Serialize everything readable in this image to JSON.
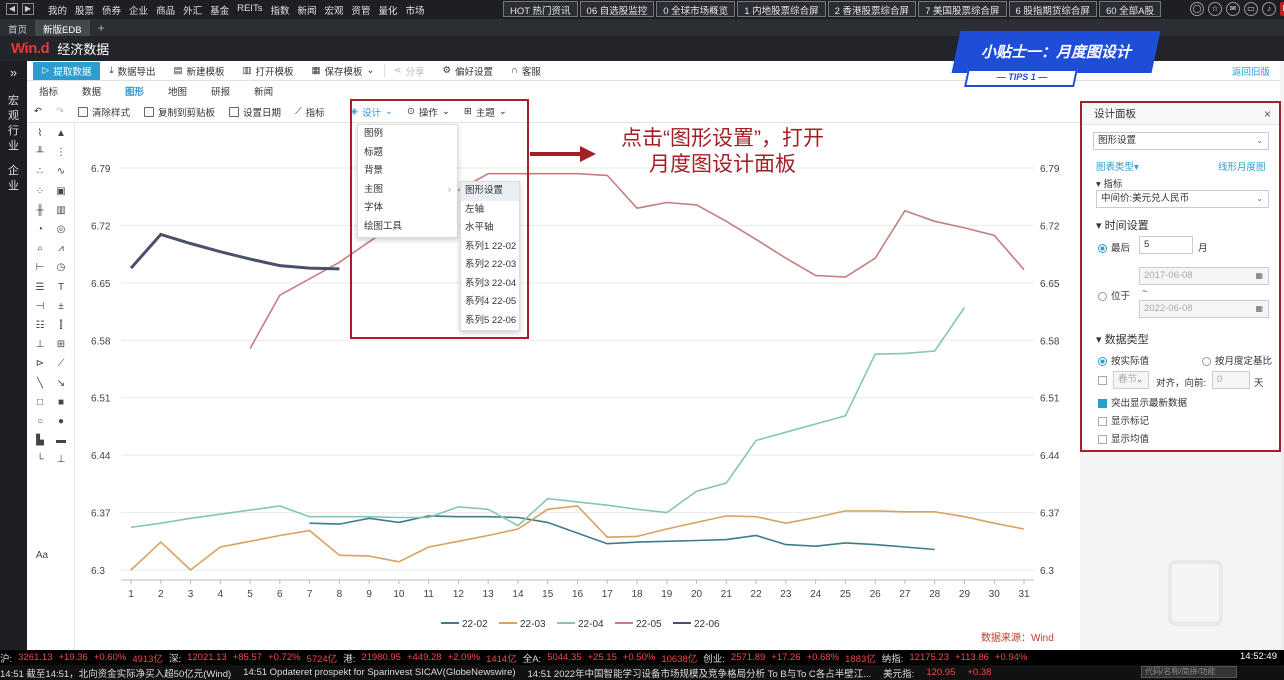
{
  "topbar": {
    "nav": [
      "我的",
      "股票",
      "债券",
      "企业",
      "商品",
      "外汇",
      "基金",
      "REITs",
      "指数",
      "新闻",
      "宏观",
      "资管",
      "量化",
      "市场"
    ],
    "quick": [
      "HOT 热门资讯",
      "06 自选股监控",
      "0 全球市场概览",
      "1 内地股票综合屏",
      "2 香港股票综合屏",
      "7 美国股票综合屏",
      "6 股指期货综合屏",
      "60 全部A股"
    ],
    "f1": "F1"
  },
  "tabs": {
    "home": "首页",
    "active": "新版EDB",
    "plus": "+"
  },
  "header": {
    "logo": "Win.d",
    "app": "经济数据"
  },
  "left_side": {
    "items": [
      "宏",
      "观",
      "行",
      "业",
      "企",
      "业"
    ],
    "expand": "»"
  },
  "toolbar1": {
    "extract": "提取数据",
    "export": "数据导出",
    "new_tpl": "新建模板",
    "open_tpl": "打开模板",
    "save_tpl": "保存模板",
    "share": "分享",
    "prefs": "偏好设置",
    "service": "客服",
    "old": "返回旧版"
  },
  "toolbar2": {
    "tabs": [
      "指标",
      "数据",
      "图形",
      "地图",
      "研报",
      "新闻"
    ],
    "active": "图形"
  },
  "toolbar3": {
    "clear": "清除样式",
    "copy": "复制到剪贴板",
    "date": "设置日期",
    "indicator": "指标",
    "design": "设计",
    "ops": "操作",
    "theme": "主题"
  },
  "menu_design": {
    "items": [
      "图例",
      "标题",
      "背景",
      "主图",
      "字体",
      "绘图工具"
    ]
  },
  "menu_main": {
    "items": [
      "图形设置",
      "左轴",
      "水平轴",
      "系列1 22-02",
      "系列2 22-03",
      "系列3 22-04",
      "系列4 22-05",
      "系列5 22-06"
    ]
  },
  "annotation": {
    "line1": "点击“图形设置”，打开",
    "line2": "月度图设计面板"
  },
  "tips": {
    "title": "小贴士一：月度图设计",
    "sub": "— TIPS 1 —"
  },
  "panel": {
    "title": "设计面板",
    "close": "×",
    "select": "图形设置",
    "chart_type": "图表类型▾",
    "chart_type_val": "线形月度图",
    "indicator_head": "指标",
    "indicator_val": "中间价:美元兑人民币",
    "time_head": "时间设置",
    "latest": "最后",
    "latest_val": "5",
    "month": "月",
    "date_from": "2017-06-08",
    "range": "位于",
    "tilde": "~",
    "date_to": "2022-06-08",
    "dtype_head": "数据类型",
    "actual": "按实际值",
    "yoy": "按月度定基比",
    "spring": "春节",
    "align": "对齐，向前:",
    "align_val": "0",
    "day": "天",
    "highlight": "突出显示最新数据",
    "marks": "显示标记",
    "avg": "显示均值"
  },
  "chart_data": {
    "type": "line",
    "x": [
      1,
      2,
      3,
      4,
      5,
      6,
      7,
      8,
      9,
      10,
      11,
      12,
      13,
      14,
      15,
      16,
      17,
      18,
      19,
      20,
      21,
      22,
      23,
      24,
      25,
      26,
      27,
      28,
      29,
      30,
      31
    ],
    "yticks": [
      6.3,
      6.37,
      6.44,
      6.51,
      6.58,
      6.65,
      6.72,
      6.79
    ],
    "ylim": [
      6.3,
      6.79
    ],
    "xlim": [
      1,
      31
    ],
    "source": "数据来源：Wind",
    "series": [
      {
        "name": "22-02",
        "color": "#3e7b8c",
        "values": [
          null,
          null,
          null,
          null,
          null,
          null,
          6.357,
          6.356,
          6.363,
          6.358,
          6.366,
          6.365,
          6.365,
          6.364,
          6.358,
          6.345,
          6.332,
          6.334,
          6.335,
          6.336,
          6.337,
          6.342,
          6.331,
          6.329,
          6.333,
          6.331,
          6.328,
          6.325,
          null,
          null,
          null
        ]
      },
      {
        "name": "22-03",
        "color": "#d9a25e",
        "values": [
          6.3,
          6.334,
          6.3,
          6.328,
          6.335,
          6.342,
          6.348,
          6.318,
          6.317,
          6.31,
          6.328,
          6.335,
          6.342,
          6.35,
          6.374,
          6.378,
          6.34,
          6.341,
          6.35,
          6.358,
          6.366,
          6.365,
          6.357,
          6.364,
          6.372,
          6.372,
          6.371,
          6.371,
          6.365,
          6.357,
          6.35
        ]
      },
      {
        "name": "22-04",
        "color": "#86c7ae",
        "values": [
          6.352,
          6.357,
          6.363,
          6.368,
          6.373,
          6.378,
          6.365,
          6.365,
          6.365,
          6.364,
          6.364,
          6.377,
          6.374,
          6.354,
          6.387,
          6.383,
          6.379,
          6.374,
          6.37,
          6.396,
          6.406,
          6.458,
          6.468,
          6.478,
          6.488,
          6.563,
          6.564,
          6.567,
          6.62,
          null,
          null
        ]
      },
      {
        "name": "22-05",
        "color": "#c47e80",
        "values": [
          null,
          null,
          null,
          null,
          6.57,
          6.635,
          6.655,
          6.675,
          6.7,
          6.724,
          6.743,
          6.763,
          6.783,
          6.783,
          6.783,
          6.783,
          6.781,
          6.741,
          6.748,
          6.745,
          6.725,
          6.703,
          6.68,
          6.659,
          6.657,
          6.68,
          6.738,
          6.725,
          6.717,
          6.708,
          6.666
        ]
      },
      {
        "name": "22-06",
        "color": "#4b4f6e",
        "values": [
          6.668,
          6.709,
          6.698,
          6.688,
          6.679,
          6.671,
          6.668,
          6.667,
          null,
          null,
          null,
          null,
          null,
          null,
          null,
          null,
          null,
          null,
          null,
          null,
          null,
          null,
          null,
          null,
          null,
          null,
          null,
          null,
          null,
          null,
          null
        ]
      }
    ]
  },
  "ticker": {
    "items": [
      {
        "t": "沪:",
        "c": "wt"
      },
      {
        "t": "3261.13",
        "c": "up"
      },
      {
        "t": "+19.36",
        "c": "up"
      },
      {
        "t": "+0.60%",
        "c": "up"
      },
      {
        "t": "4913亿",
        "c": "up"
      },
      {
        "t": "深:",
        "c": "wt"
      },
      {
        "t": "12021.13",
        "c": "up"
      },
      {
        "t": "+85.57",
        "c": "up"
      },
      {
        "t": "+0.72%",
        "c": "up"
      },
      {
        "t": "5724亿",
        "c": "up"
      },
      {
        "t": "港:",
        "c": "wt"
      },
      {
        "t": "21980.95",
        "c": "up"
      },
      {
        "t": "+449.28",
        "c": "up"
      },
      {
        "t": "+2.09%",
        "c": "up"
      },
      {
        "t": "1414亿",
        "c": "up"
      },
      {
        "t": "全A:",
        "c": "wt"
      },
      {
        "t": "5044.35",
        "c": "up"
      },
      {
        "t": "+25.15",
        "c": "up"
      },
      {
        "t": "+0.50%",
        "c": "up"
      },
      {
        "t": "10638亿",
        "c": "up"
      },
      {
        "t": "创业:",
        "c": "wt"
      },
      {
        "t": "2571.89",
        "c": "up"
      },
      {
        "t": "+17.26",
        "c": "up"
      },
      {
        "t": "+0.68%",
        "c": "up"
      },
      {
        "t": "1883亿",
        "c": "up"
      },
      {
        "t": "纳指:",
        "c": "wt"
      },
      {
        "t": "12175.23",
        "c": "up"
      },
      {
        "t": "+113.86",
        "c": "up"
      },
      {
        "t": "+0.94%",
        "c": "up"
      }
    ],
    "clock": "14:52:49"
  },
  "news": {
    "items": [
      "14:51  截至14:51，北向资金实际净买入超50亿元(Wind)",
      "14:51  Opdateret prospekt for Sparinvest SICAV(GlobeNewswire)",
      "14:51  2022年中国智能学习设备市场规模及竞争格局分析 To B与To C各占半壁江..."
    ],
    "usd": "美元指:",
    "usd_val": "120.95",
    "usd_chg": "+0.38",
    "search": "代码/名称/简拼/功能"
  }
}
